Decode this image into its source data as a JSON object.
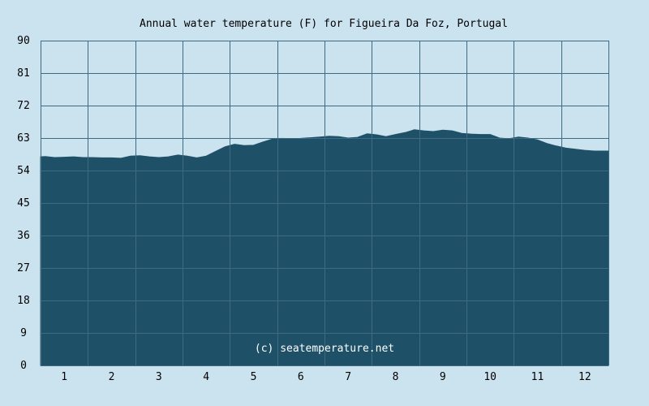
{
  "chart_data": {
    "type": "area",
    "title": "Annual water temperature (F) for Figueira Da Foz, Portugal",
    "credit": "(c) seatemperature.net",
    "xlabel": "",
    "ylabel": "",
    "x_ticks": [
      "1",
      "2",
      "3",
      "4",
      "5",
      "6",
      "7",
      "8",
      "9",
      "10",
      "11",
      "12"
    ],
    "y_ticks": [
      "0",
      "9",
      "18",
      "27",
      "36",
      "45",
      "54",
      "63",
      "72",
      "81",
      "90"
    ],
    "ylim": [
      0,
      90
    ],
    "xlim": [
      0.5,
      12.5
    ],
    "grid": true,
    "colors": {
      "background": "#cbe3ef",
      "plot_background": "#cbe3ef",
      "area": "#1e5068",
      "grid": "#3e6b82"
    },
    "series": [
      {
        "x": [
          0.5,
          0.6,
          0.8,
          1.0,
          1.2,
          1.4,
          1.6,
          1.8,
          2.0,
          2.2,
          2.4,
          2.6,
          2.8,
          3.0,
          3.2,
          3.4,
          3.6,
          3.8,
          4.0,
          4.2,
          4.4,
          4.6,
          4.8,
          5.0,
          5.2,
          5.4,
          5.6,
          5.8,
          6.0,
          6.2,
          6.4,
          6.6,
          6.8,
          7.0,
          7.2,
          7.4,
          7.6,
          7.8,
          8.0,
          8.2,
          8.4,
          8.6,
          8.8,
          9.0,
          9.2,
          9.4,
          9.6,
          9.8,
          10.0,
          10.2,
          10.4,
          10.6,
          10.8,
          11.0,
          11.2,
          11.4,
          11.6,
          11.8,
          12.0,
          12.2,
          12.5
        ],
        "y": [
          57.8,
          57.9,
          57.6,
          57.7,
          57.8,
          57.6,
          57.6,
          57.5,
          57.5,
          57.4,
          58.0,
          58.1,
          57.8,
          57.6,
          57.8,
          58.3,
          58.0,
          57.5,
          58.0,
          59.3,
          60.6,
          61.3,
          60.9,
          61.0,
          61.9,
          62.7,
          62.9,
          62.8,
          62.9,
          63.1,
          63.3,
          63.5,
          63.4,
          63.0,
          63.2,
          64.2,
          63.9,
          63.4,
          64.0,
          64.5,
          65.3,
          65.0,
          64.8,
          65.2,
          65.0,
          64.3,
          64.1,
          64.0,
          64.0,
          63.0,
          62.8,
          63.3,
          63.0,
          62.5,
          61.5,
          60.8,
          60.2,
          59.9,
          59.6,
          59.4,
          59.4
        ]
      }
    ]
  }
}
